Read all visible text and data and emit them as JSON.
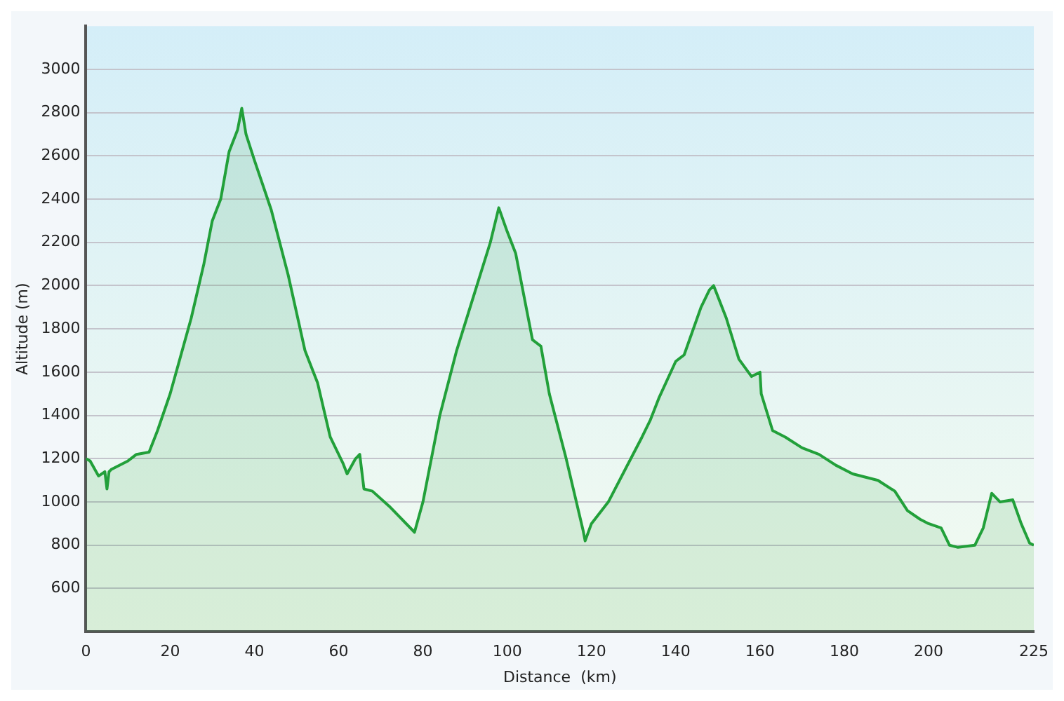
{
  "chart_data": {
    "type": "area",
    "xlabel": "Distance  (km)",
    "ylabel": "Altitude (m)",
    "x": [
      0,
      1,
      3,
      4.5,
      5,
      5.5,
      6,
      10,
      12,
      15,
      17,
      20,
      25,
      28,
      30,
      32,
      34,
      36,
      37,
      38,
      40,
      44,
      48,
      52,
      55,
      58,
      61,
      62,
      64,
      65,
      66,
      68,
      72,
      78,
      80,
      84,
      88,
      92,
      96,
      98,
      100,
      102,
      106,
      108,
      110,
      114,
      118,
      118.5,
      120,
      124,
      128,
      132,
      134,
      136,
      140,
      142,
      146,
      148,
      149,
      152,
      155,
      158,
      160,
      160.3,
      163,
      166,
      170,
      174,
      178,
      182,
      188,
      192,
      195,
      198,
      200,
      203,
      205,
      207,
      211,
      213,
      215,
      217,
      220,
      222,
      224,
      225
    ],
    "series": [
      {
        "color": "#22a03a",
        "values": [
          1200,
          1190,
          1120,
          1140,
          1060,
          1140,
          1150,
          1190,
          1220,
          1230,
          1330,
          1500,
          1850,
          2100,
          2300,
          2400,
          2620,
          2720,
          2820,
          2700,
          2580,
          2350,
          2050,
          1700,
          1550,
          1300,
          1180,
          1130,
          1200,
          1220,
          1060,
          1050,
          980,
          860,
          1000,
          1400,
          1700,
          1950,
          2200,
          2360,
          2250,
          2150,
          1750,
          1720,
          1500,
          1200,
          870,
          820,
          900,
          1000,
          1150,
          1300,
          1380,
          1480,
          1650,
          1680,
          1900,
          1980,
          2000,
          1850,
          1660,
          1580,
          1600,
          1500,
          1330,
          1300,
          1250,
          1220,
          1170,
          1130,
          1100,
          1050,
          960,
          920,
          900,
          880,
          800,
          790,
          800,
          880,
          1040,
          1000,
          1010,
          900,
          810,
          800
        ]
      }
    ],
    "xlim": [
      0,
      225
    ],
    "xticks": [
      0,
      20,
      40,
      60,
      80,
      100,
      120,
      140,
      160,
      180,
      200,
      225
    ],
    "ylim": [
      400,
      3200
    ],
    "yticks": [
      600,
      800,
      1000,
      1200,
      1400,
      1600,
      1800,
      2000,
      2200,
      2400,
      2600,
      2800,
      3000
    ],
    "grid": "y",
    "legend": false
  }
}
